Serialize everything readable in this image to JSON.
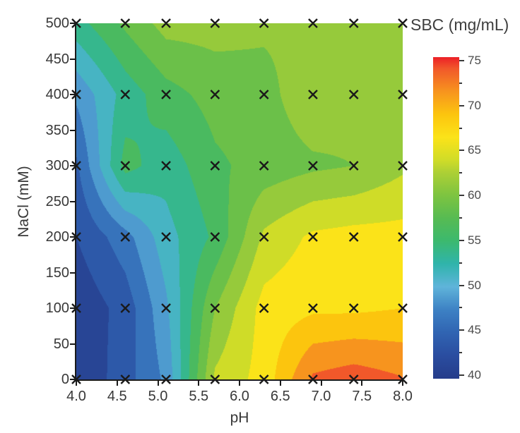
{
  "chart_data": {
    "type": "heatmap",
    "subtype": "filled-contour",
    "title": "SBC (mg/mL)",
    "xlabel": "pH",
    "ylabel": "NaCl (mM)",
    "x": [
      4.0,
      4.6,
      5.1,
      5.7,
      6.3,
      6.9,
      7.4,
      8.0
    ],
    "y": [
      0,
      100,
      200,
      300,
      400,
      500
    ],
    "values": [
      [
        40.0,
        44.0,
        48.0,
        63.0,
        66.0,
        73.0,
        74.0,
        72.7
      ],
      [
        40.5,
        43.5,
        49.5,
        60.0,
        66.0,
        67.0,
        67.0,
        67.5
      ],
      [
        42.5,
        46.5,
        51.5,
        55.5,
        63.0,
        65.5,
        66.0,
        66.0
      ],
      [
        44.5,
        56.0,
        53.5,
        57.0,
        58.5,
        59.5,
        60.0,
        62.0
      ],
      [
        48.0,
        53.5,
        56.5,
        58.5,
        59.0,
        62.0,
        61.0,
        62.0
      ],
      [
        54.0,
        58.0,
        61.0,
        61.0,
        60.5,
        60.5,
        61.0,
        61.5
      ]
    ],
    "xlim": [
      4.0,
      8.0
    ],
    "ylim": [
      0,
      500
    ],
    "xticks": [
      "4.0",
      "4.5",
      "5.0",
      "5.5",
      "6.0",
      "6.5",
      "7.0",
      "7.5",
      "8.0"
    ],
    "yticks": [
      "0",
      "50",
      "100",
      "150",
      "200",
      "250",
      "300",
      "350",
      "400",
      "450",
      "500"
    ],
    "grid": false,
    "contour_band_step": 2.5,
    "marker": {
      "symbol": "x",
      "color": "#1a1a1a"
    },
    "colorbar": {
      "position": "right",
      "title": "SBC (mg/mL)",
      "min": 40,
      "max": 75,
      "major_ticks": [
        75,
        70,
        65,
        60,
        55,
        50,
        45,
        40
      ],
      "minor_step": 2.5,
      "stops": [
        {
          "value": 40.0,
          "color": "#253c8a"
        },
        {
          "value": 42.5,
          "color": "#2a4da0"
        },
        {
          "value": 45.0,
          "color": "#3064b2"
        },
        {
          "value": 47.5,
          "color": "#3d81c4"
        },
        {
          "value": 50.0,
          "color": "#5fb4da"
        },
        {
          "value": 52.5,
          "color": "#2fb4ab"
        },
        {
          "value": 55.0,
          "color": "#3cb96e"
        },
        {
          "value": 57.5,
          "color": "#57bb52"
        },
        {
          "value": 60.0,
          "color": "#7ec440"
        },
        {
          "value": 62.5,
          "color": "#aed035"
        },
        {
          "value": 63.75,
          "color": "#cfdc28"
        },
        {
          "value": 66.25,
          "color": "#fbe319"
        },
        {
          "value": 68.75,
          "color": "#fcc50e"
        },
        {
          "value": 71.25,
          "color": "#f7941e"
        },
        {
          "value": 73.75,
          "color": "#f1582a"
        },
        {
          "value": 75.0,
          "color": "#ec2027"
        }
      ]
    }
  },
  "colors": {
    "axis": "#1a1a1a",
    "tick_text": "#383838",
    "colorbar_text": "#4a4a4a",
    "background": "#ffffff"
  }
}
